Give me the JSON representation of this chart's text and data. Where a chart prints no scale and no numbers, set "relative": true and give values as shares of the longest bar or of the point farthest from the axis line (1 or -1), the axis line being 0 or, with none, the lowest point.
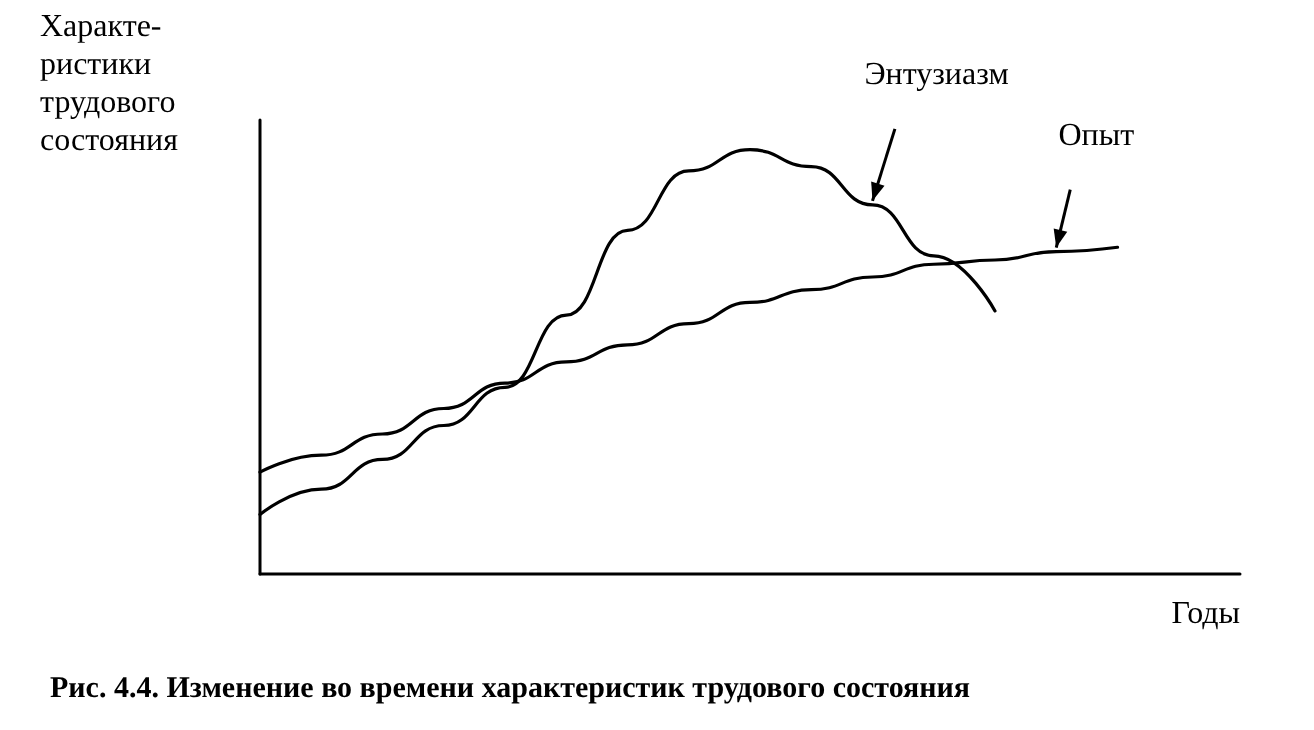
{
  "chart_data": {
    "type": "line",
    "relative": true,
    "title": "Рис. 4.4. Изменение во времени характеристик трудового состояния",
    "xlabel": "Годы",
    "ylabel": "Характе-\nристики\nтрудового\nсостояния",
    "categories": [
      null,
      null,
      null,
      null,
      null,
      null,
      null,
      null,
      null,
      null,
      null,
      null,
      null,
      null,
      null,
      null,
      null
    ],
    "series": [
      {
        "name": "Энтузиазм",
        "color": "#000000",
        "values": [
          0.14,
          0.2,
          0.27,
          0.35,
          0.44,
          0.61,
          0.81,
          0.95,
          1.0,
          0.96,
          0.87,
          0.75,
          0.62,
          null,
          null,
          null,
          null
        ]
      },
      {
        "name": "Опыт",
        "color": "#000000",
        "values": [
          0.24,
          0.28,
          0.33,
          0.39,
          0.45,
          0.5,
          0.54,
          0.59,
          0.64,
          0.67,
          0.7,
          0.73,
          0.74,
          0.76,
          0.77,
          null,
          null
        ]
      }
    ],
    "marker": "none",
    "line_style": "solid",
    "grid": false,
    "legend": false
  }
}
